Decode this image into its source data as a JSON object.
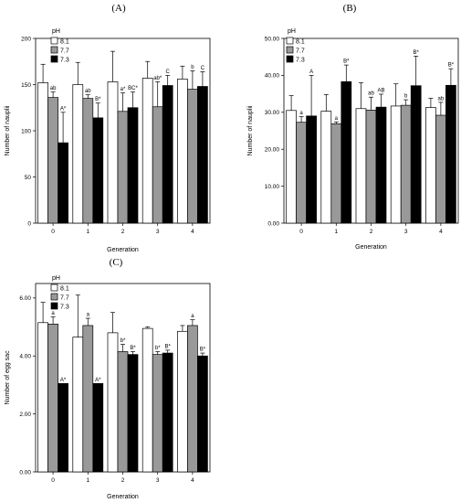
{
  "colors": {
    "8.1": "#ffffff",
    "7.7": "#999999",
    "7.3": "#000000",
    "frame": "#000000"
  },
  "chart_data": [
    {
      "panel_label": "(A)",
      "type": "bar",
      "xlabel": "Generation",
      "ylabel": "Number of nauplii",
      "ylim": [
        0,
        200
      ],
      "yticks": [
        0,
        50,
        100,
        150,
        200
      ],
      "ytick_labels": [
        "0",
        "50",
        "100",
        "150",
        "200"
      ],
      "categories": [
        "0",
        "1",
        "2",
        "3",
        "4"
      ],
      "legend_title": "pH",
      "series": [
        {
          "name": "8.1",
          "color": "#ffffff",
          "values": [
            152,
            150,
            153,
            157,
            156
          ],
          "errors": [
            20,
            24,
            33,
            18,
            14
          ],
          "labels": [
            "",
            "",
            "",
            "",
            ""
          ]
        },
        {
          "name": "7.7",
          "color": "#999999",
          "values": [
            136,
            135,
            121,
            126,
            145
          ],
          "errors": [
            6,
            4,
            20,
            27,
            20
          ],
          "labels": [
            "ab",
            "ab",
            "a*",
            "ab*",
            "b"
          ]
        },
        {
          "name": "7.3",
          "color": "#000000",
          "values": [
            87,
            114,
            125,
            149,
            148
          ],
          "errors": [
            33,
            16,
            17,
            11,
            16
          ],
          "labels": [
            "A*",
            "B*",
            "BC*",
            "C",
            "C"
          ]
        }
      ]
    },
    {
      "panel_label": "(B)",
      "type": "bar",
      "xlabel": "Generation",
      "ylabel": "Number of nauplii",
      "ylim": [
        0,
        50
      ],
      "yticks": [
        0,
        10,
        20,
        30,
        40,
        50
      ],
      "ytick_labels": [
        "0.00",
        "10.00",
        "20.00",
        "30.00",
        "40.00",
        "50.00"
      ],
      "categories": [
        "0",
        "1",
        "2",
        "3",
        "4"
      ],
      "legend_title": "pH",
      "series": [
        {
          "name": "8.1",
          "color": "#ffffff",
          "values": [
            30.5,
            30.3,
            31.0,
            31.7,
            31.3
          ],
          "errors": [
            4.0,
            4.5,
            7.0,
            6.0,
            2.5
          ],
          "labels": [
            "",
            "",
            "",
            "",
            ""
          ]
        },
        {
          "name": "7.7",
          "color": "#999999",
          "values": [
            27.3,
            26.9,
            30.6,
            31.9,
            29.2
          ],
          "errors": [
            1.5,
            0.5,
            3.5,
            1.5,
            3.5
          ],
          "labels": [
            "a",
            "a",
            "ab",
            "b",
            "ab"
          ]
        },
        {
          "name": "7.3",
          "color": "#000000",
          "values": [
            29.0,
            38.3,
            31.4,
            37.2,
            37.3
          ],
          "errors": [
            11.0,
            4.5,
            3.5,
            8.0,
            4.5
          ],
          "labels": [
            "A",
            "B*",
            "AB",
            "B*",
            "B*"
          ]
        }
      ]
    },
    {
      "panel_label": "(C)",
      "type": "bar",
      "xlabel": "Generation",
      "ylabel": "Number of egg sac",
      "ylim": [
        0,
        6.5
      ],
      "yticks": [
        0,
        2,
        4,
        6
      ],
      "ytick_labels": [
        "0.00",
        "2.00",
        "4.00",
        "6.00"
      ],
      "categories": [
        "0",
        "1",
        "2",
        "3",
        "4"
      ],
      "legend_title": "pH",
      "series": [
        {
          "name": "8.1",
          "color": "#ffffff",
          "values": [
            5.15,
            4.65,
            4.8,
            4.95,
            4.85
          ],
          "errors": [
            0.7,
            1.45,
            0.7,
            0.05,
            0.2
          ],
          "labels": [
            "",
            "",
            "",
            "",
            ""
          ]
        },
        {
          "name": "7.7",
          "color": "#999999",
          "values": [
            5.1,
            5.05,
            4.15,
            4.05,
            5.05
          ],
          "errors": [
            0.25,
            0.25,
            0.25,
            0.1,
            0.2
          ],
          "labels": [
            "a",
            "a",
            "b*",
            "b*",
            "a"
          ]
        },
        {
          "name": "7.3",
          "color": "#000000",
          "values": [
            3.05,
            3.05,
            4.05,
            4.1,
            4.0
          ],
          "errors": [
            0,
            0,
            0.1,
            0.1,
            0.1
          ],
          "labels": [
            "A*",
            "A*",
            "B*",
            "B*",
            "B*"
          ]
        }
      ]
    }
  ]
}
